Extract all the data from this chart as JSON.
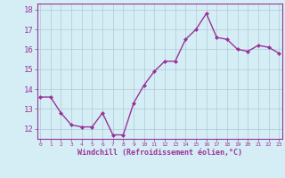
{
  "x": [
    0,
    1,
    2,
    3,
    4,
    5,
    6,
    7,
    8,
    9,
    10,
    11,
    12,
    13,
    14,
    15,
    16,
    17,
    18,
    19,
    20,
    21,
    22,
    23
  ],
  "y": [
    13.6,
    13.6,
    12.8,
    12.2,
    12.1,
    12.1,
    12.8,
    11.7,
    11.7,
    13.3,
    14.2,
    14.9,
    15.4,
    15.4,
    16.5,
    17.0,
    17.8,
    16.6,
    16.5,
    16.0,
    15.9,
    16.2,
    16.1,
    15.8
  ],
  "line_color": "#993399",
  "marker": "D",
  "marker_size": 2,
  "bg_color": "#d5eef5",
  "grid_color": "#b0c8d8",
  "xlabel": "Windchill (Refroidissement éolien,°C)",
  "xlabel_color": "#993399",
  "tick_color": "#993399",
  "ylim": [
    11.5,
    18.3
  ],
  "yticks": [
    12,
    13,
    14,
    15,
    16,
    17,
    18
  ],
  "xticks": [
    0,
    1,
    2,
    3,
    4,
    5,
    6,
    7,
    8,
    9,
    10,
    11,
    12,
    13,
    14,
    15,
    16,
    17,
    18,
    19,
    20,
    21,
    22,
    23
  ],
  "linewidth": 1.0
}
